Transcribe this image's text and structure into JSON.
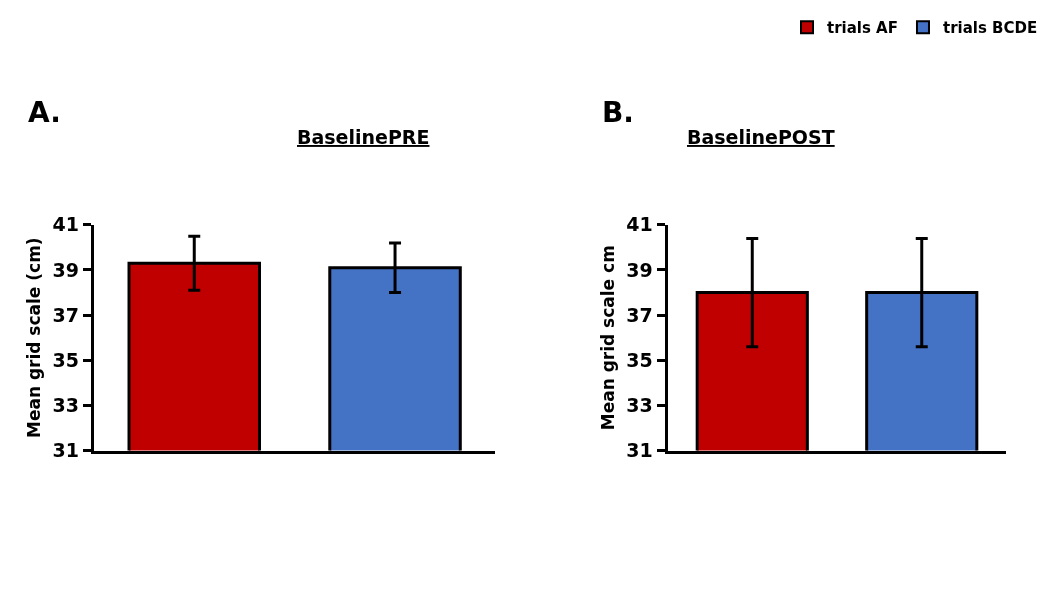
{
  "chart_data": [
    {
      "type": "bar",
      "title": "BaselinePRE",
      "ylabel": "Mean grid scale (cm)",
      "annotations": [
        "A."
      ],
      "categories": [
        null,
        null
      ],
      "ylim": [
        31,
        41
      ],
      "yticks": [
        31,
        33,
        35,
        37,
        39,
        41
      ],
      "legend": "top right",
      "tick_labels": "y",
      "series": [
        {
          "name": "trials AF",
          "color": "#c00000",
          "values": [
            39.3,
            null
          ],
          "errors": [
            1.2,
            null
          ]
        },
        {
          "name": "trials BCDE",
          "color": "#4472c4",
          "values": [
            null,
            39.1
          ],
          "errors": [
            null,
            1.1
          ]
        }
      ]
    },
    {
      "type": "bar",
      "title": "BaselinePOST",
      "ylabel": "Mean grid scale cm",
      "annotations": [
        "B."
      ],
      "categories": [
        null,
        null
      ],
      "ylim": [
        31,
        41
      ],
      "yticks": [
        31,
        33,
        35,
        37,
        39,
        41
      ],
      "tick_labels": "y",
      "series": [
        {
          "name": "trials AF",
          "color": "#c00000",
          "values": [
            38.0,
            null
          ],
          "errors": [
            2.4,
            null
          ]
        },
        {
          "name": "trials BCDE",
          "color": "#4472c4",
          "values": [
            null,
            38.0
          ],
          "errors": [
            null,
            2.4
          ]
        }
      ]
    }
  ]
}
